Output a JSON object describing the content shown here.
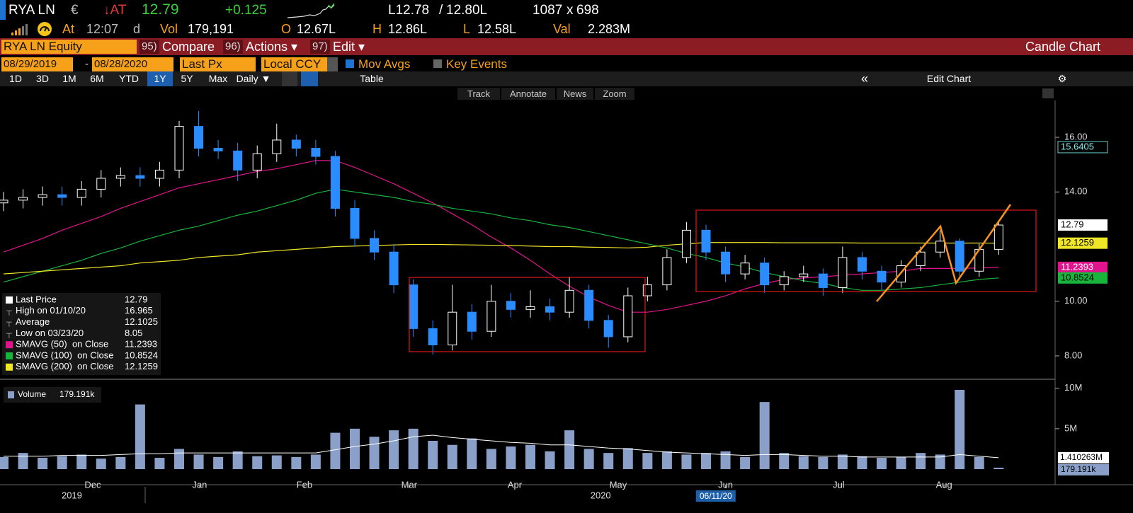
{
  "header": {
    "ticker": "RYA LN",
    "currency": "€",
    "arrow_at": "↓AT",
    "last": "12.79",
    "change": "+0.125",
    "bid": "L12.78",
    "slash": "/",
    "ask": "12.80L",
    "size_bid": "1087",
    "x": "x",
    "size_ask": "698",
    "at": "At",
    "time": "12:07",
    "d": "d",
    "vol_label": "Vol",
    "vol": "179,191",
    "o_label": "O",
    "open": "12.67L",
    "h_label": "H",
    "high": "12.86L",
    "l_label": "L",
    "low": "12.58L",
    "val_label": "Val",
    "val": "2.283M"
  },
  "command_bar": {
    "security": "RYA LN Equity",
    "items": [
      {
        "num": "95)",
        "label": "Compare"
      },
      {
        "num": "96)",
        "label": "Actions ▾"
      },
      {
        "num": "97)",
        "label": "Edit ▾"
      }
    ],
    "title": "Candle Chart"
  },
  "settings": {
    "start": "08/29/2019",
    "dash": "-",
    "end": "08/28/2020",
    "field": "Last Px",
    "currency": "Local CCY",
    "mov_avgs": "Mov Avgs",
    "key_events": "Key Events"
  },
  "toolbar": {
    "periods": [
      "1D",
      "3D",
      "1M",
      "6M",
      "YTD",
      "1Y",
      "5Y",
      "Max"
    ],
    "selected_period": 5,
    "frequency": "Daily ▼",
    "table": "Table",
    "edit_chart": "Edit Chart",
    "chart_tools": [
      "Track",
      "Annotate",
      "News",
      "Zoom"
    ]
  },
  "chart_data": [
    {
      "type": "candlestick",
      "xlim": [
        0,
        54
      ],
      "ylim": [
        7.3,
        17.4
      ],
      "yticks": [
        {
          "value": 8,
          "label": "8.00"
        },
        {
          "value": 10,
          "label": "10.00"
        },
        {
          "value": 14,
          "label": "14.00"
        },
        {
          "value": 16,
          "label": "16.00"
        }
      ],
      "xticks": [
        {
          "value": 4.57,
          "label": "Dec"
        },
        {
          "value": 10.05,
          "label": "Jan"
        },
        {
          "value": 15.42,
          "label": "Feb"
        },
        {
          "value": 20.79,
          "label": "Mar"
        },
        {
          "value": 26.2,
          "label": "Apr"
        },
        {
          "value": 31.5,
          "label": "May"
        },
        {
          "value": 37.0,
          "label": "Jun"
        },
        {
          "value": 42.8,
          "label": "Jul"
        },
        {
          "value": 48.2,
          "label": "Aug"
        }
      ],
      "year_ticks": [
        {
          "value": 3.5,
          "label": "2019"
        },
        {
          "value": 30.6,
          "label": "2020"
        }
      ],
      "cursor_date": {
        "value": 36.5,
        "label": "06/11/20"
      },
      "up_color": "#ffffff",
      "down_color": "#2a8cff",
      "open": [
        13.6,
        13.7,
        13.8,
        13.9,
        13.8,
        14.1,
        14.5,
        14.6,
        14.5,
        14.8,
        16.4,
        15.6,
        15.5,
        14.8,
        15.4,
        15.9,
        15.6,
        15.3,
        13.4,
        12.3,
        11.8,
        10.6,
        9.0,
        8.4,
        9.6,
        8.9,
        10.0,
        9.7,
        9.8,
        9.6,
        10.4,
        9.3,
        8.7,
        10.2,
        10.6,
        11.6,
        12.6,
        11.8,
        11.0,
        11.4,
        10.6,
        10.9,
        11.0,
        10.5,
        11.6,
        11.1,
        10.7,
        11.3,
        11.8,
        12.2,
        11.1,
        11.9
      ],
      "high": [
        14.0,
        14.1,
        14.2,
        14.2,
        14.4,
        14.8,
        14.9,
        14.9,
        15.1,
        16.6,
        16.965,
        15.9,
        15.8,
        15.7,
        16.5,
        16.1,
        15.9,
        15.5,
        13.7,
        12.6,
        12.1,
        10.8,
        9.3,
        10.6,
        9.9,
        10.6,
        10.3,
        10.4,
        10.1,
        10.9,
        10.6,
        9.5,
        10.5,
        10.9,
        11.9,
        12.9,
        12.8,
        12.0,
        11.7,
        11.6,
        11.1,
        11.3,
        11.2,
        12.0,
        11.8,
        11.3,
        11.5,
        12.0,
        12.6,
        12.3,
        12.1,
        12.95
      ],
      "low": [
        13.3,
        13.4,
        13.5,
        13.5,
        13.5,
        13.8,
        14.2,
        14.2,
        14.2,
        14.5,
        15.3,
        15.2,
        14.4,
        14.5,
        15.1,
        15.3,
        15.0,
        13.1,
        12.0,
        11.5,
        10.3,
        8.7,
        8.05,
        8.2,
        8.6,
        8.7,
        9.4,
        9.4,
        9.3,
        9.4,
        9.0,
        8.3,
        8.5,
        10.0,
        10.4,
        11.4,
        11.5,
        10.7,
        10.8,
        10.3,
        10.4,
        10.7,
        10.2,
        10.3,
        10.8,
        10.4,
        10.5,
        11.1,
        11.6,
        10.8,
        10.9,
        11.7
      ],
      "close": [
        13.7,
        13.8,
        13.9,
        13.8,
        14.1,
        14.5,
        14.6,
        14.5,
        14.8,
        16.4,
        15.6,
        15.5,
        14.8,
        15.4,
        15.9,
        15.6,
        15.3,
        13.4,
        12.3,
        11.8,
        10.6,
        9.0,
        8.4,
        9.6,
        8.9,
        10.0,
        9.7,
        9.8,
        9.6,
        10.4,
        9.3,
        8.7,
        10.2,
        10.6,
        11.6,
        12.6,
        11.8,
        11.0,
        11.4,
        10.6,
        10.9,
        11.0,
        10.5,
        11.6,
        11.1,
        10.7,
        11.3,
        11.8,
        12.2,
        11.1,
        11.9,
        12.79
      ],
      "series": [
        {
          "name": "SMAVG (50)  on Close",
          "color": "#e0148c",
          "values": [
            11.8,
            12.05,
            12.3,
            12.6,
            12.85,
            13.1,
            13.4,
            13.65,
            13.9,
            14.15,
            14.3,
            14.45,
            14.6,
            14.75,
            14.85,
            15.0,
            15.15,
            15.15,
            14.9,
            14.6,
            14.3,
            13.95,
            13.6,
            13.2,
            12.8,
            12.35,
            11.95,
            11.5,
            11.0,
            10.55,
            10.15,
            9.85,
            9.6,
            9.6,
            9.7,
            9.85,
            10.0,
            10.2,
            10.45,
            10.65,
            10.8,
            10.85,
            10.9,
            10.95,
            11.0,
            11.05,
            11.1,
            11.2,
            11.2,
            11.2,
            11.22,
            11.2393
          ]
        },
        {
          "name": "SMAVG (100)  on Close",
          "color": "#19b43c",
          "values": [
            10.7,
            10.9,
            11.1,
            11.3,
            11.5,
            11.75,
            11.95,
            12.2,
            12.4,
            12.6,
            12.75,
            12.95,
            13.15,
            13.3,
            13.5,
            13.7,
            13.95,
            14.1,
            14.0,
            13.9,
            13.8,
            13.65,
            13.55,
            13.4,
            13.3,
            13.2,
            13.05,
            12.95,
            12.8,
            12.7,
            12.55,
            12.4,
            12.25,
            12.1,
            11.95,
            11.75,
            11.6,
            11.4,
            11.25,
            11.05,
            10.9,
            10.75,
            10.65,
            10.5,
            10.4,
            10.4,
            10.45,
            10.5,
            10.6,
            10.7,
            10.8,
            10.8524
          ]
        },
        {
          "name": "SMAVG (200)  on Close",
          "color": "#f0e628",
          "values": [
            11.0,
            11.05,
            11.1,
            11.15,
            11.2,
            11.25,
            11.3,
            11.4,
            11.45,
            11.5,
            11.6,
            11.65,
            11.7,
            11.8,
            11.85,
            11.9,
            11.95,
            12.0,
            12.02,
            12.04,
            12.06,
            12.08,
            12.08,
            12.07,
            12.06,
            12.05,
            12.04,
            12.02,
            12.0,
            12.0,
            11.98,
            11.97,
            11.95,
            11.98,
            12.05,
            12.1,
            12.15,
            12.15,
            12.15,
            12.15,
            12.14,
            12.14,
            12.14,
            12.14,
            12.13,
            12.13,
            12.13,
            12.13,
            12.13,
            12.13,
            12.13,
            12.1259
          ]
        }
      ],
      "marker_level": 15.6405,
      "stats": {
        "last_label": "Last Price",
        "high_label": "High on 01/10/20",
        "average_label": "Average",
        "average": 12.1025,
        "low_label": "Low on 03/23/20"
      }
    },
    {
      "type": "bar",
      "xlim": [
        0,
        54
      ],
      "ylim": [
        0,
        10.5
      ],
      "yticks": [
        {
          "value": 5,
          "label": "5M"
        },
        {
          "value": 10,
          "label": "10M"
        }
      ],
      "series": [
        {
          "name": "Volume",
          "color": "#8aa0c8",
          "values": [
            1.5,
            2.0,
            1.4,
            1.6,
            1.8,
            1.3,
            1.5,
            8.0,
            1.4,
            2.5,
            1.8,
            1.5,
            2.2,
            1.6,
            1.7,
            1.5,
            1.8,
            4.5,
            5.0,
            4.0,
            4.8,
            5.0,
            3.5,
            3.0,
            3.8,
            2.5,
            2.8,
            3.0,
            2.2,
            4.8,
            2.5,
            2.0,
            2.6,
            2.0,
            2.2,
            1.8,
            2.0,
            2.2,
            1.5,
            8.3,
            2.0,
            1.6,
            1.5,
            1.8,
            1.6,
            1.4,
            1.5,
            2.0,
            1.8,
            9.8,
            1.5,
            0.179191
          ],
          "value_labels": [
            null,
            null,
            null,
            null,
            null,
            null,
            null,
            null,
            null,
            null,
            null,
            null,
            null,
            null,
            null,
            null,
            null,
            null,
            null,
            null,
            null,
            null,
            null,
            null,
            null,
            null,
            null,
            null,
            null,
            null,
            null,
            null,
            null,
            null,
            null,
            null,
            null,
            null,
            null,
            null,
            null,
            null,
            null,
            null,
            null,
            null,
            null,
            null,
            null,
            null,
            null,
            "179.191k"
          ]
        },
        {
          "color": "#ffffff",
          "values": [
            1.6,
            1.6,
            1.6,
            1.7,
            1.7,
            1.7,
            1.8,
            1.9,
            1.9,
            2.0,
            2.0,
            2.0,
            2.0,
            2.0,
            2.0,
            2.0,
            2.0,
            2.4,
            2.8,
            3.1,
            3.5,
            4.0,
            4.2,
            3.9,
            3.7,
            3.5,
            3.3,
            3.2,
            3.0,
            3.0,
            2.8,
            2.6,
            2.5,
            2.3,
            2.1,
            2.0,
            1.9,
            1.8,
            1.7,
            1.8,
            1.8,
            1.7,
            1.6,
            1.6,
            1.5,
            1.5,
            1.5,
            1.5,
            1.5,
            1.8,
            1.6,
            1.410263
          ],
          "value_labels": [
            null,
            null,
            null,
            null,
            null,
            null,
            null,
            null,
            null,
            null,
            null,
            null,
            null,
            null,
            null,
            null,
            null,
            null,
            null,
            null,
            null,
            null,
            null,
            null,
            null,
            null,
            null,
            null,
            null,
            null,
            null,
            null,
            null,
            null,
            null,
            null,
            null,
            null,
            null,
            null,
            null,
            null,
            null,
            null,
            null,
            null,
            null,
            null,
            null,
            null,
            null,
            "1.410263M"
          ]
        }
      ]
    }
  ]
}
